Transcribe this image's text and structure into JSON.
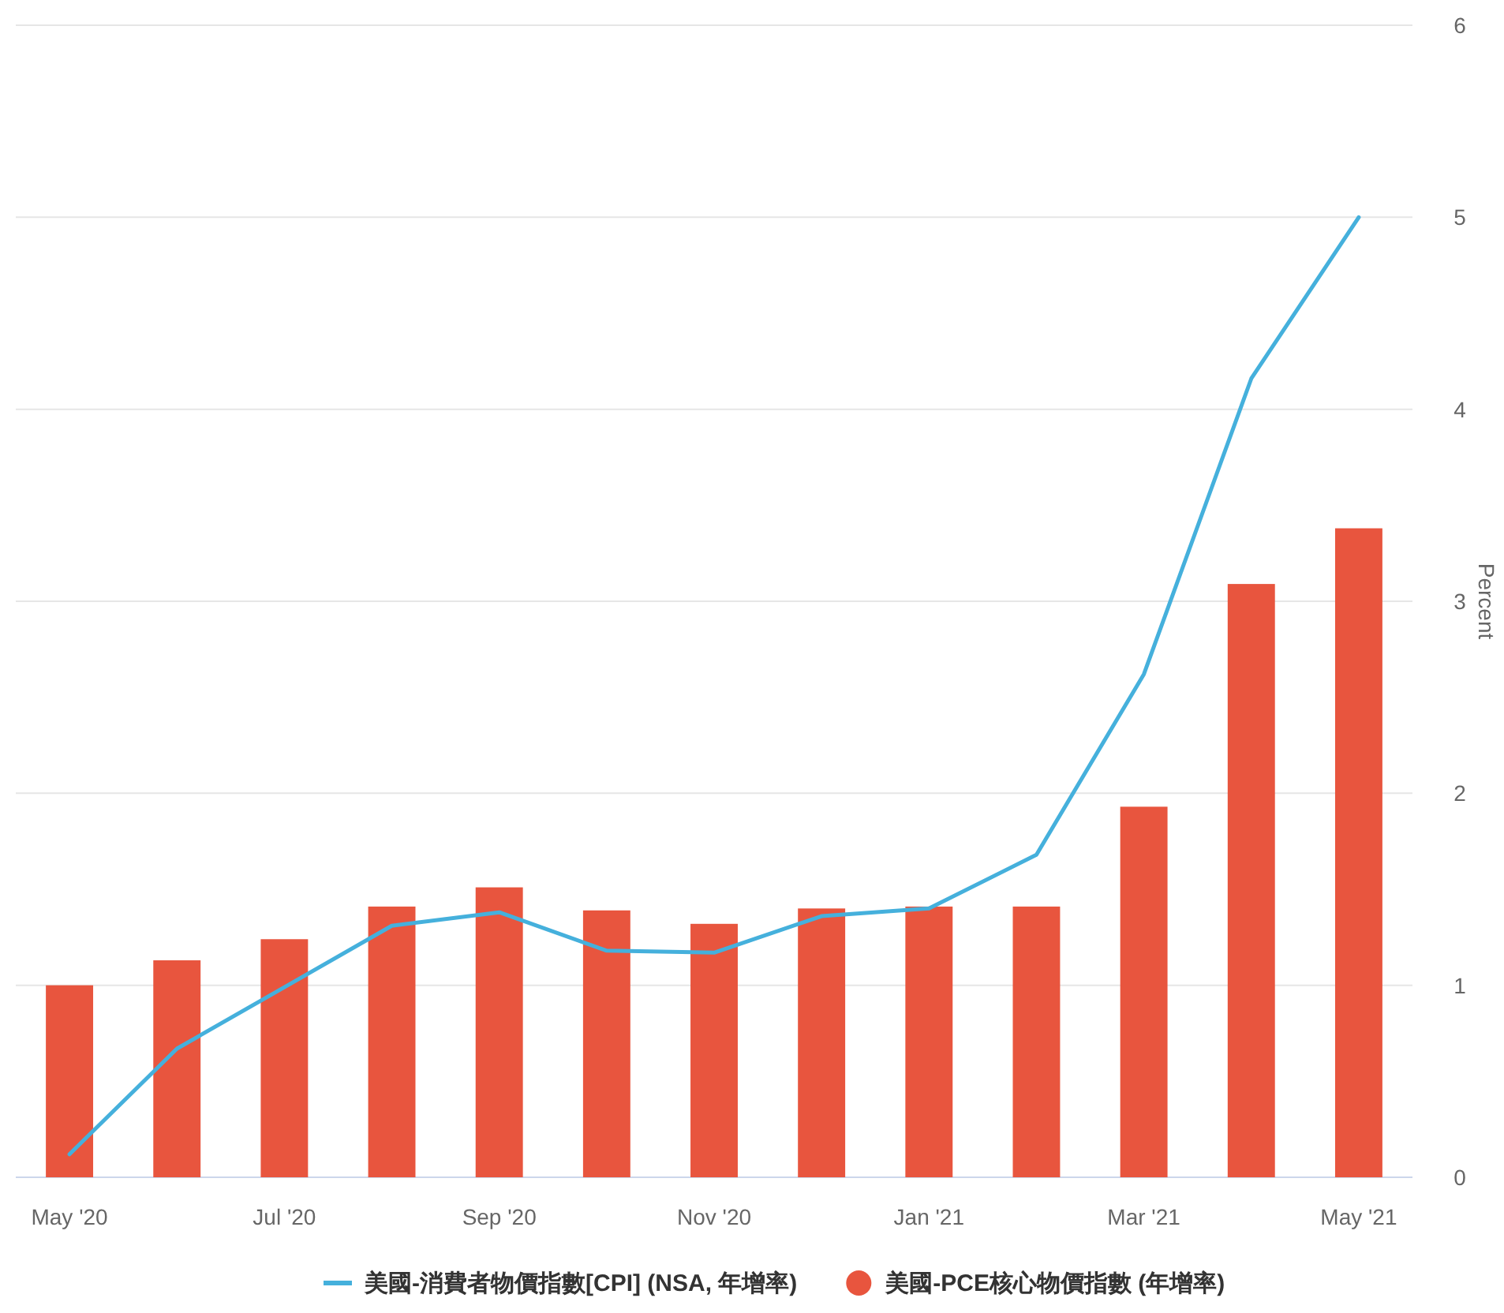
{
  "chart_data": {
    "type": "bar",
    "categories": [
      "May '20",
      null,
      "Jul '20",
      null,
      "Sep '20",
      null,
      "Nov '20",
      null,
      "Jan '21",
      null,
      "Mar '21",
      null,
      "May '21"
    ],
    "series": [
      {
        "name": "美國-消費者物價指數[CPI] (NSA, 年增率)",
        "type": "line",
        "color": "#45b0dc",
        "values": [
          0.12,
          0.67,
          0.99,
          1.31,
          1.38,
          1.18,
          1.17,
          1.36,
          1.4,
          1.68,
          2.62,
          4.16,
          5.0
        ]
      },
      {
        "name": "美國-PCE核心物價指數 (年增率)",
        "color": "#e8553e",
        "values": [
          1.0,
          1.13,
          1.24,
          1.41,
          1.51,
          1.39,
          1.32,
          1.4,
          1.41,
          1.41,
          1.93,
          3.09,
          3.38
        ]
      }
    ],
    "ylabel": "Percent",
    "ylim": [
      0,
      6
    ],
    "yticks": [
      0,
      1,
      2,
      3,
      4,
      5,
      6
    ],
    "grid": "y",
    "legend": "bottom"
  }
}
